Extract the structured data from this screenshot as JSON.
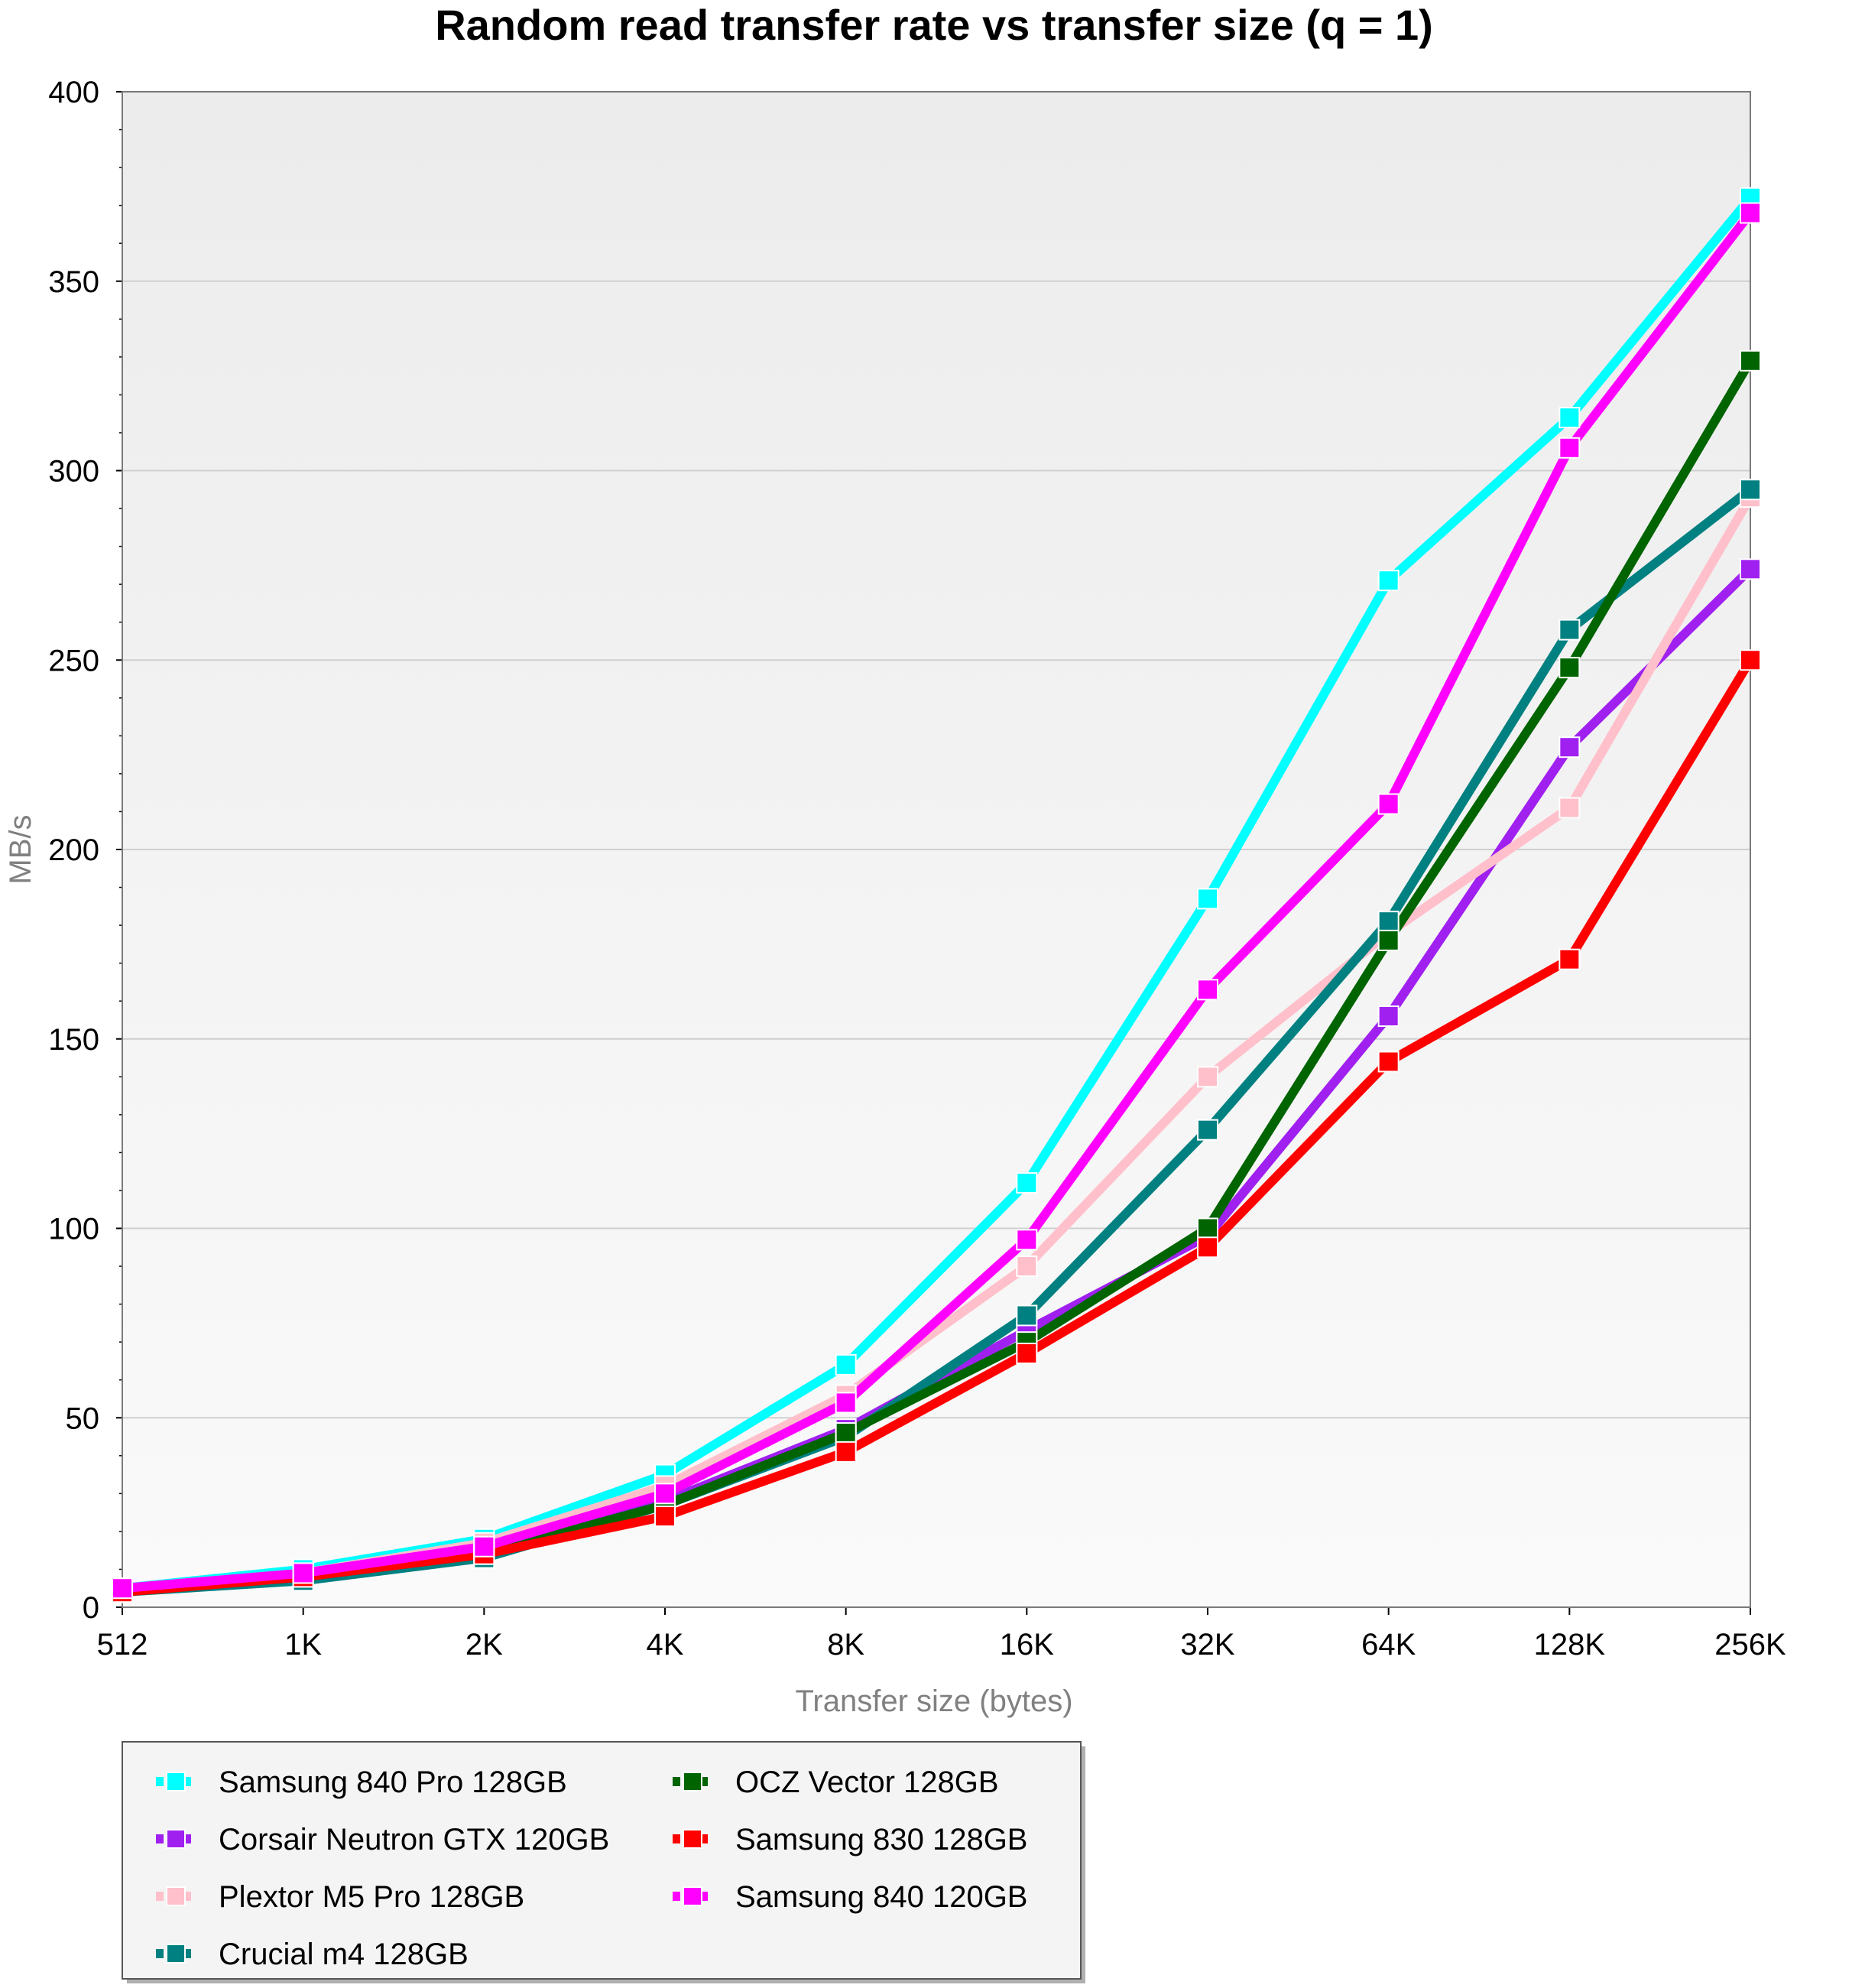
{
  "chart_data": {
    "type": "line",
    "title": "Random read transfer rate vs transfer size (q = 1)",
    "xlabel": "Transfer size (bytes)",
    "ylabel": "MB/s",
    "ylim": [
      0,
      400
    ],
    "yticks": [
      "0",
      "50",
      "100",
      "150",
      "200",
      "250",
      "300",
      "350",
      "400"
    ],
    "categories": [
      "512",
      "1K",
      "2K",
      "4K",
      "8K",
      "16K",
      "32K",
      "64K",
      "128K",
      "256K"
    ],
    "grid": true,
    "legend_position": "bottom-left",
    "series": [
      {
        "name": "Samsung 840 Pro 128GB",
        "color": "#00FFFF",
        "values": [
          5,
          10,
          18,
          35,
          64,
          112,
          187,
          271,
          314,
          372
        ]
      },
      {
        "name": "Corsair Neutron GTX 120GB",
        "color": "#A020F0",
        "values": [
          4,
          8,
          15,
          28,
          47,
          73,
          98,
          156,
          227,
          274
        ]
      },
      {
        "name": "Plextor M5 Pro 128GB",
        "color": "#FFC0CB",
        "values": [
          5,
          9,
          17,
          32,
          56,
          90,
          140,
          178,
          211,
          293
        ]
      },
      {
        "name": "Crucial m4 128GB",
        "color": "#008080",
        "values": [
          4,
          7,
          13,
          27,
          45,
          77,
          126,
          181,
          258,
          295
        ]
      },
      {
        "name": "OCZ Vector 128GB",
        "color": "#006400",
        "values": [
          4,
          8,
          14,
          27,
          46,
          70,
          100,
          176,
          248,
          329
        ]
      },
      {
        "name": "Samsung 830 128GB",
        "color": "#FF0000",
        "values": [
          4,
          8,
          14,
          24,
          41,
          67,
          95,
          144,
          171,
          250
        ]
      },
      {
        "name": "Samsung 840 120GB",
        "color": "#FF00FF",
        "values": [
          5,
          9,
          16,
          30,
          54,
          97,
          163,
          212,
          306,
          368
        ]
      }
    ],
    "legend_order": [
      0,
      4,
      1,
      5,
      2,
      6,
      3
    ]
  }
}
